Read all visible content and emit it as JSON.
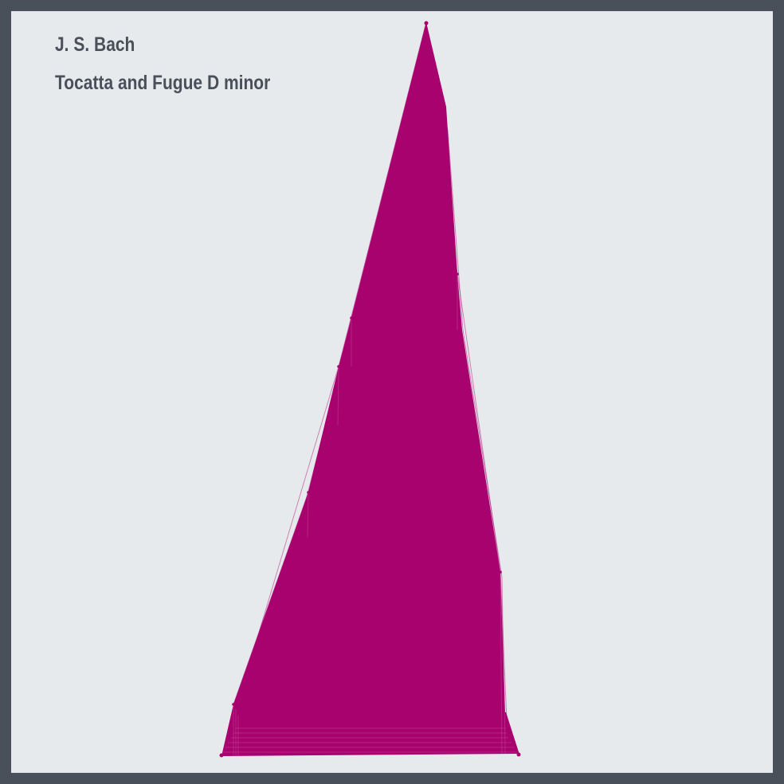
{
  "poster": {
    "composer": "J. S. Bach",
    "piece": "Tocatta and Fugue D minor"
  },
  "colors": {
    "frame": "#4a5059",
    "background": "#e7eaed",
    "text": "#4a5059",
    "shape": "#a8026f"
  }
}
